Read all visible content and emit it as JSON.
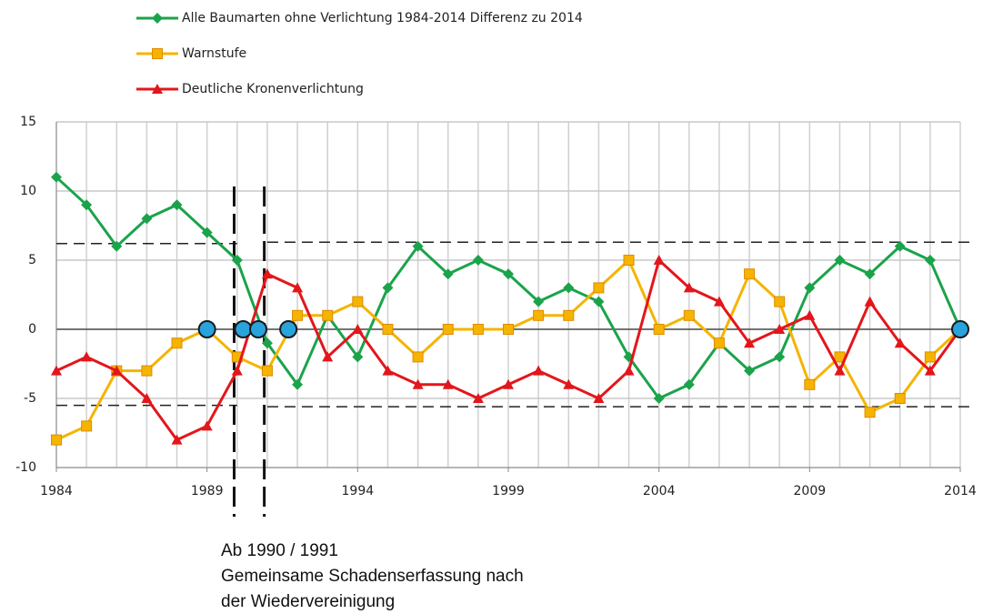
{
  "chart_data": {
    "type": "line",
    "x": [
      1984,
      1985,
      1986,
      1987,
      1988,
      1989,
      1990,
      1991,
      1992,
      1993,
      1994,
      1995,
      1996,
      1997,
      1998,
      1999,
      2000,
      2001,
      2002,
      2003,
      2004,
      2005,
      2006,
      2007,
      2008,
      2009,
      2010,
      2011,
      2012,
      2013,
      2014
    ],
    "series": [
      {
        "name": "Alle Baumarten ohne Verlichtung 1984-2014 Differenz zu 2014",
        "color": "#1ba34b",
        "marker": "diamond",
        "values": [
          11,
          9,
          6,
          8,
          9,
          7,
          5,
          -1,
          -4,
          1,
          -2,
          3,
          6,
          4,
          5,
          4,
          2,
          3,
          2,
          -2,
          -5,
          -4,
          -1,
          -3,
          -2,
          3,
          5,
          4,
          6,
          5,
          0
        ]
      },
      {
        "name": "Warnstufe",
        "color": "#f5b400",
        "marker": "square",
        "values": [
          -8,
          -7,
          -3,
          -3,
          -1,
          0,
          -2,
          -3,
          1,
          1,
          2,
          0,
          -2,
          0,
          0,
          0,
          1,
          1,
          3,
          5,
          0,
          1,
          -1,
          4,
          2,
          -4,
          -2,
          -6,
          -5,
          -2,
          0
        ]
      },
      {
        "name": "Deutliche Kronenverlichtung",
        "color": "#e3161b",
        "marker": "triangle",
        "values": [
          -3,
          -2,
          -3,
          -5,
          -8,
          -7,
          -3,
          4,
          3,
          -2,
          0,
          -3,
          -4,
          -4,
          -5,
          -4,
          -3,
          -4,
          -5,
          -3,
          5,
          3,
          2,
          -1,
          0,
          1,
          -3,
          2,
          -1,
          -3,
          0
        ]
      }
    ],
    "highlights": {
      "color": "#29a3dc",
      "x": [
        1989,
        1990.2,
        1990.7,
        1991.7,
        2014
      ],
      "y": [
        0,
        0,
        0,
        0,
        0
      ]
    },
    "hlines": [
      {
        "y": 6.2,
        "from": 1984,
        "to": 1990
      },
      {
        "y": -5.5,
        "from": 1984,
        "to": 1990
      },
      {
        "y": 6.3,
        "from": 1991,
        "to": 2014.5
      },
      {
        "y": -5.6,
        "from": 1991,
        "to": 2014.5
      }
    ],
    "vlines": [
      1989.9,
      1990.9
    ],
    "xlim": [
      1984,
      2014
    ],
    "ylim": [
      -10,
      15
    ],
    "xticks": [
      1984,
      1989,
      1994,
      1999,
      2004,
      2009,
      2014
    ],
    "yticks": [
      -10,
      -5,
      0,
      5,
      10,
      15
    ],
    "grid": true,
    "xgrid_step": 1,
    "annotation": [
      "Ab 1990 / 1991",
      "Gemeinsame Schadenserfassung nach",
      "der  Wiedervereinigung"
    ]
  }
}
